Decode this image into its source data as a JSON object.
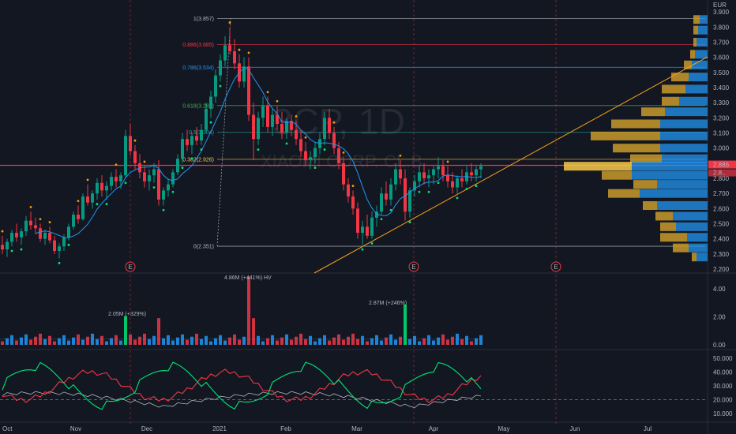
{
  "chart_data": [
    {
      "type": "candlestick",
      "watermark": {
        "symbol": "3CP, 1D",
        "name": "XIAOMI CORP. CL.B"
      },
      "currency": "EUR",
      "ylim": [
        2.2,
        4.0
      ],
      "y_ticks": [
        "3.900",
        "3.800",
        "3.700",
        "3.600",
        "3.500",
        "3.400",
        "3.300",
        "3.200",
        "3.100",
        "3.000",
        "2.900",
        "2.800",
        "2.700",
        "2.600",
        "2.500",
        "2.400",
        "2.300",
        "2.200"
      ],
      "x_ticks": [
        "Oct",
        "Nov",
        "Dec",
        "2021",
        "Feb",
        "Mar",
        "Apr",
        "May",
        "Jun",
        "Jul"
      ],
      "last_price": {
        "value": 2.886,
        "label": "2.886",
        "label2": "2.8..",
        "color": "#f23645"
      },
      "horizontal_line": {
        "value": 2.886,
        "color": "#f23645"
      },
      "fibonacci": [
        {
          "label": "1(3.857)",
          "level": 3.857,
          "color": "#b2b5be"
        },
        {
          "label": "0.886(3.685)",
          "level": 3.685,
          "color": "#f23645"
        },
        {
          "label": "0.786(3.534)",
          "level": 3.534,
          "color": "#2196f3"
        },
        {
          "label": "0.618(3.281)",
          "level": 3.281,
          "color": "#4caf50"
        },
        {
          "label": "0.5(3.104)",
          "level": 3.104,
          "color": "#26a69a"
        },
        {
          "label": "0.382(2.926)",
          "level": 2.926,
          "color": "#f7c948"
        },
        {
          "label": "0(2.351)",
          "level": 2.351,
          "color": "#b2b5be"
        }
      ],
      "event_markers": [
        "E",
        "E",
        "E"
      ],
      "ohlc": [
        [
          2.36,
          2.42,
          2.3,
          2.33
        ],
        [
          2.33,
          2.4,
          2.28,
          2.38
        ],
        [
          2.38,
          2.46,
          2.35,
          2.44
        ],
        [
          2.44,
          2.5,
          2.38,
          2.41
        ],
        [
          2.41,
          2.47,
          2.36,
          2.45
        ],
        [
          2.45,
          2.55,
          2.42,
          2.52
        ],
        [
          2.52,
          2.58,
          2.46,
          2.49
        ],
        [
          2.49,
          2.54,
          2.43,
          2.47
        ],
        [
          2.47,
          2.5,
          2.38,
          2.4
        ],
        [
          2.4,
          2.46,
          2.36,
          2.44
        ],
        [
          2.44,
          2.48,
          2.37,
          2.39
        ],
        [
          2.39,
          2.42,
          2.3,
          2.32
        ],
        [
          2.32,
          2.37,
          2.27,
          2.35
        ],
        [
          2.35,
          2.43,
          2.32,
          2.41
        ],
        [
          2.41,
          2.5,
          2.39,
          2.48
        ],
        [
          2.48,
          2.58,
          2.46,
          2.56
        ],
        [
          2.56,
          2.62,
          2.5,
          2.53
        ],
        [
          2.53,
          2.7,
          2.52,
          2.68
        ],
        [
          2.68,
          2.76,
          2.62,
          2.64
        ],
        [
          2.64,
          2.72,
          2.6,
          2.7
        ],
        [
          2.7,
          2.8,
          2.66,
          2.77
        ],
        [
          2.77,
          2.82,
          2.68,
          2.72
        ],
        [
          2.72,
          2.78,
          2.66,
          2.75
        ],
        [
          2.75,
          2.84,
          2.72,
          2.81
        ],
        [
          2.81,
          2.86,
          2.74,
          2.78
        ],
        [
          2.78,
          2.84,
          2.73,
          2.82
        ],
        [
          2.82,
          3.12,
          2.8,
          3.08
        ],
        [
          3.08,
          3.16,
          2.95,
          2.98
        ],
        [
          2.98,
          3.02,
          2.86,
          2.9
        ],
        [
          2.9,
          2.96,
          2.8,
          2.84
        ],
        [
          2.84,
          2.88,
          2.74,
          2.78
        ],
        [
          2.78,
          2.86,
          2.72,
          2.82
        ],
        [
          2.82,
          2.9,
          2.77,
          2.86
        ],
        [
          2.86,
          2.92,
          2.62,
          2.66
        ],
        [
          2.66,
          2.74,
          2.62,
          2.72
        ],
        [
          2.72,
          2.8,
          2.68,
          2.76
        ],
        [
          2.76,
          2.86,
          2.74,
          2.84
        ],
        [
          2.84,
          2.96,
          2.82,
          2.93
        ],
        [
          2.93,
          3.1,
          2.9,
          3.06
        ],
        [
          3.06,
          3.12,
          2.98,
          3.02
        ],
        [
          3.02,
          3.1,
          2.96,
          3.08
        ],
        [
          3.08,
          3.14,
          3.02,
          3.05
        ],
        [
          3.05,
          3.16,
          3.02,
          3.12
        ],
        [
          3.12,
          3.3,
          3.1,
          3.26
        ],
        [
          3.26,
          3.38,
          3.2,
          3.34
        ],
        [
          3.34,
          3.52,
          3.3,
          3.48
        ],
        [
          3.48,
          3.62,
          3.44,
          3.58
        ],
        [
          3.58,
          3.74,
          3.54,
          3.68
        ],
        [
          3.68,
          3.8,
          3.62,
          3.64
        ],
        [
          3.64,
          3.72,
          3.52,
          3.56
        ],
        [
          3.56,
          3.62,
          3.4,
          3.44
        ],
        [
          3.44,
          3.6,
          3.4,
          3.54
        ],
        [
          3.54,
          3.6,
          3.18,
          3.22
        ],
        [
          3.22,
          3.3,
          2.92,
          3.06
        ],
        [
          3.06,
          3.24,
          3.02,
          3.2
        ],
        [
          3.2,
          3.34,
          3.14,
          3.28
        ],
        [
          3.28,
          3.34,
          3.1,
          3.14
        ],
        [
          3.14,
          3.26,
          3.08,
          3.22
        ],
        [
          3.22,
          3.28,
          3.12,
          3.16
        ],
        [
          3.16,
          3.24,
          3.06,
          3.1
        ],
        [
          3.1,
          3.2,
          3.06,
          3.18
        ],
        [
          3.18,
          3.22,
          3.08,
          3.12
        ],
        [
          3.12,
          3.18,
          3.02,
          3.06
        ],
        [
          3.06,
          3.12,
          2.94,
          2.98
        ],
        [
          2.98,
          3.04,
          2.88,
          2.92
        ],
        [
          2.92,
          2.98,
          2.86,
          2.94
        ],
        [
          2.94,
          3.04,
          2.9,
          3.0
        ],
        [
          3.0,
          3.1,
          2.96,
          3.06
        ],
        [
          3.06,
          3.24,
          3.02,
          3.2
        ],
        [
          3.2,
          3.26,
          3.06,
          3.1
        ],
        [
          3.1,
          3.14,
          2.96,
          3.0
        ],
        [
          3.0,
          3.04,
          2.86,
          2.9
        ],
        [
          2.9,
          2.94,
          2.72,
          2.76
        ],
        [
          2.76,
          2.8,
          2.64,
          2.68
        ],
        [
          2.68,
          2.72,
          2.56,
          2.6
        ],
        [
          2.6,
          2.64,
          2.4,
          2.44
        ],
        [
          2.44,
          2.52,
          2.36,
          2.48
        ],
        [
          2.48,
          2.56,
          2.4,
          2.42
        ],
        [
          2.42,
          2.58,
          2.4,
          2.54
        ],
        [
          2.54,
          2.62,
          2.48,
          2.58
        ],
        [
          2.58,
          2.74,
          2.56,
          2.7
        ],
        [
          2.7,
          2.78,
          2.62,
          2.66
        ],
        [
          2.66,
          2.8,
          2.62,
          2.76
        ],
        [
          2.76,
          2.9,
          2.72,
          2.86
        ],
        [
          2.86,
          2.92,
          2.76,
          2.8
        ],
        [
          2.8,
          2.86,
          2.52,
          2.58
        ],
        [
          2.58,
          2.74,
          2.54,
          2.72
        ],
        [
          2.72,
          2.82,
          2.68,
          2.78
        ],
        [
          2.78,
          2.88,
          2.74,
          2.84
        ],
        [
          2.84,
          2.9,
          2.76,
          2.8
        ],
        [
          2.8,
          2.86,
          2.74,
          2.82
        ],
        [
          2.82,
          2.88,
          2.76,
          2.86
        ],
        [
          2.86,
          2.94,
          2.8,
          2.88
        ],
        [
          2.88,
          2.92,
          2.78,
          2.82
        ],
        [
          2.82,
          2.88,
          2.74,
          2.78
        ],
        [
          2.78,
          2.84,
          2.7,
          2.74
        ],
        [
          2.74,
          2.82,
          2.7,
          2.8
        ],
        [
          2.8,
          2.86,
          2.74,
          2.78
        ],
        [
          2.78,
          2.88,
          2.76,
          2.84
        ],
        [
          2.84,
          2.9,
          2.78,
          2.82
        ],
        [
          2.82,
          2.88,
          2.78,
          2.86
        ],
        [
          2.86,
          2.9,
          2.8,
          2.88
        ]
      ],
      "volume": {
        "y_ticks": [
          "4.00",
          "2.00",
          "0.00"
        ],
        "annotations": [
          "2.05M (+329%)",
          "4.86M (+441%) HV",
          "2.87M (+246%)"
        ]
      },
      "oscillator": {
        "y_ticks": [
          "50.000",
          "40.000",
          "30.000",
          "20.000",
          "10.000"
        ],
        "series_colors": [
          "#00e676",
          "#f23645",
          "#b2b5be"
        ]
      },
      "volume_profile": {
        "colors": {
          "up": "#2196f3",
          "down": "#c99a2a",
          "poc": "#f7c948"
        }
      }
    }
  ]
}
